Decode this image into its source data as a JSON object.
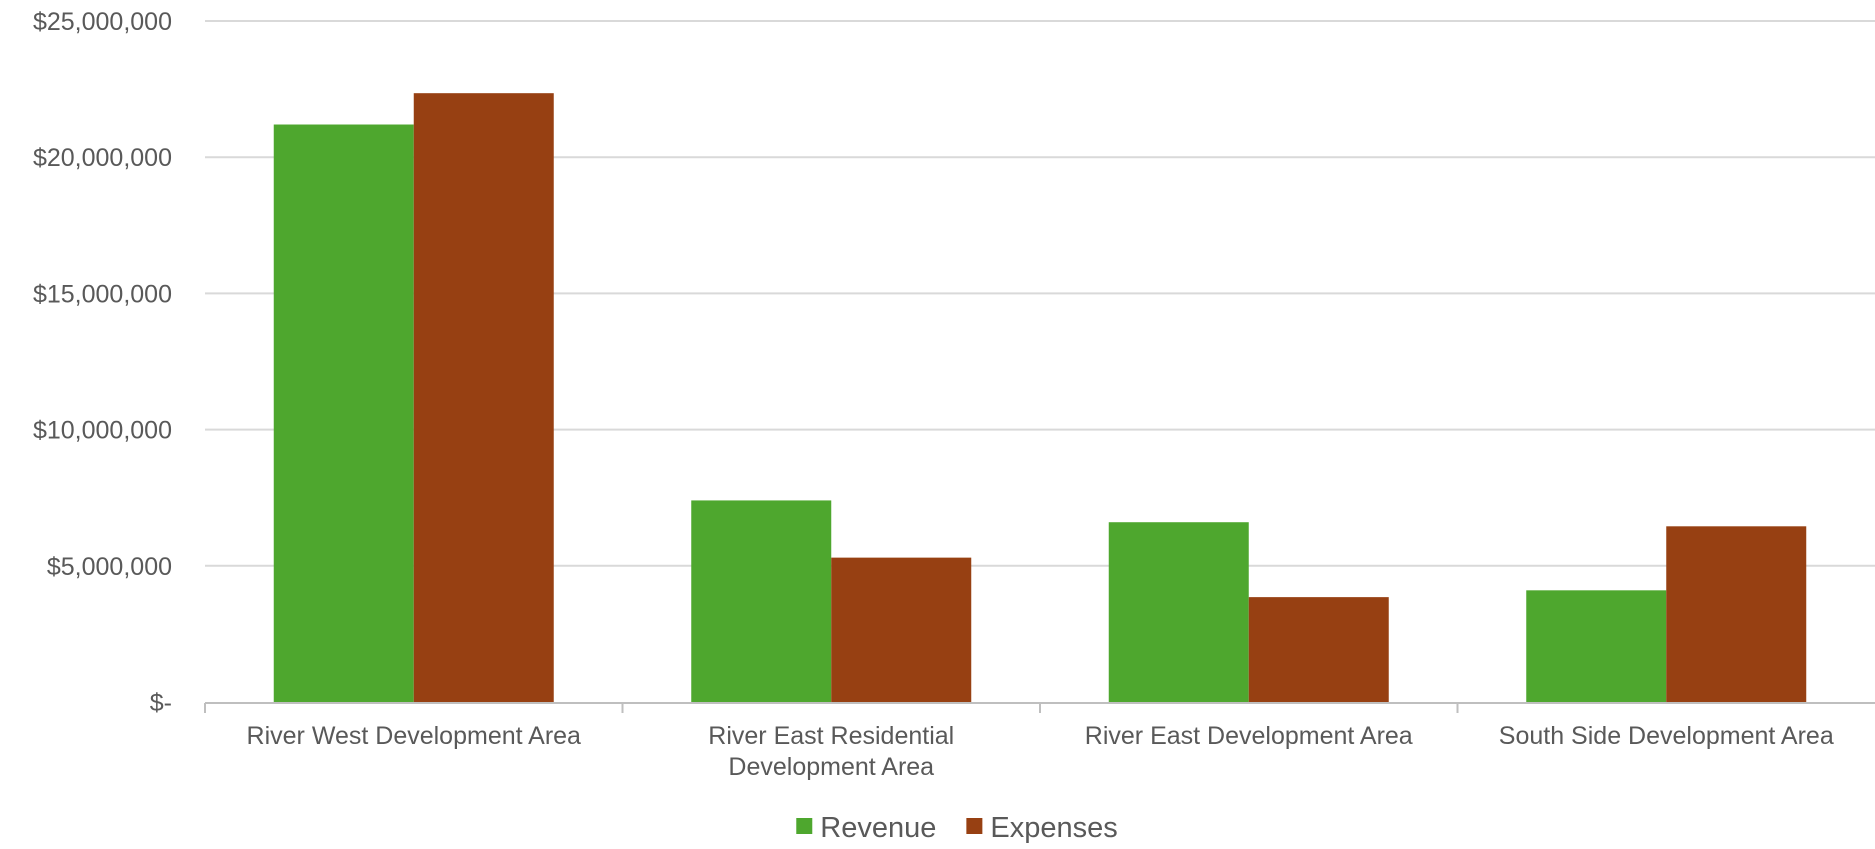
{
  "chart_data": {
    "type": "bar",
    "title": "",
    "xlabel": "",
    "ylabel": "",
    "categories": [
      [
        "River West Development Area"
      ],
      [
        "River East Residential",
        "Development Area"
      ],
      [
        "River East Development Area"
      ],
      [
        "South Side Development Area"
      ]
    ],
    "series": [
      {
        "name": "Revenue",
        "color": "#4EA72E",
        "values": [
          21200000,
          7400000,
          6600000,
          4100000
        ]
      },
      {
        "name": "Expenses",
        "color": "#974012",
        "values": [
          22350000,
          5300000,
          3850000,
          6450000
        ]
      }
    ],
    "ylim": [
      0,
      25000000
    ],
    "yticks": [
      {
        "value": 0,
        "label": "$-"
      },
      {
        "value": 5000000,
        "label": "$5,000,000"
      },
      {
        "value": 10000000,
        "label": "$10,000,000"
      },
      {
        "value": 15000000,
        "label": "$15,000,000"
      },
      {
        "value": 20000000,
        "label": "$20,000,000"
      },
      {
        "value": 25000000,
        "label": "$25,000,000"
      }
    ],
    "grid": true,
    "legend_position": "bottom",
    "colors": {
      "gridline": "#D9D9D9",
      "axis": "#BFBFBF",
      "text": "#595959"
    }
  }
}
